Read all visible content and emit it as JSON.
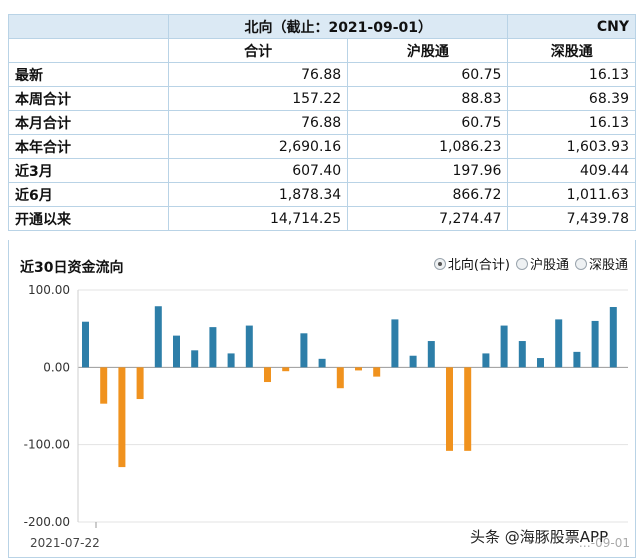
{
  "summary": {
    "title": "北向（截止：2021-09-01）",
    "currency": "CNY",
    "columns": [
      "合计",
      "沪股通",
      "深股通"
    ],
    "rows": [
      {
        "label": "最新",
        "values": [
          "76.88",
          "60.75",
          "16.13"
        ]
      },
      {
        "label": "本周合计",
        "values": [
          "157.22",
          "88.83",
          "68.39"
        ]
      },
      {
        "label": "本月合计",
        "values": [
          "76.88",
          "60.75",
          "16.13"
        ]
      },
      {
        "label": "本年合计",
        "values": [
          "2,690.16",
          "1,086.23",
          "1,603.93"
        ]
      },
      {
        "label": "近3月",
        "values": [
          "607.40",
          "197.96",
          "409.44"
        ]
      },
      {
        "label": "近6月",
        "values": [
          "1,878.34",
          "866.72",
          "1,011.63"
        ]
      },
      {
        "label": "开通以来",
        "values": [
          "14,714.25",
          "7,274.47",
          "7,439.78"
        ]
      }
    ]
  },
  "legend": {
    "items": [
      "北向(合计)",
      "沪股通",
      "深股通"
    ],
    "selected": "北向(合计)"
  },
  "watermark": "头条 @海豚股票APP",
  "chart_data": {
    "type": "bar",
    "title": "近30日资金流向",
    "ylim": [
      -200,
      100
    ],
    "yticks": [
      100,
      0,
      -100,
      -200
    ],
    "ytick_labels": [
      "100.00",
      "0.00",
      "-100.00",
      "-200.00"
    ],
    "xtick_labels": [
      "2021-07-22",
      "…-09-01"
    ],
    "series": [
      {
        "values": [
          59,
          -47,
          -129,
          -41,
          79,
          41,
          22,
          52,
          18,
          54,
          -19,
          -5,
          44,
          11,
          -27,
          -4,
          -12,
          62,
          15,
          34,
          -108,
          -108,
          18,
          54,
          34,
          12,
          62,
          20,
          60,
          78
        ]
      }
    ],
    "colors": {
      "positive": "#2d7ea8",
      "negative": "#f0921e"
    }
  }
}
